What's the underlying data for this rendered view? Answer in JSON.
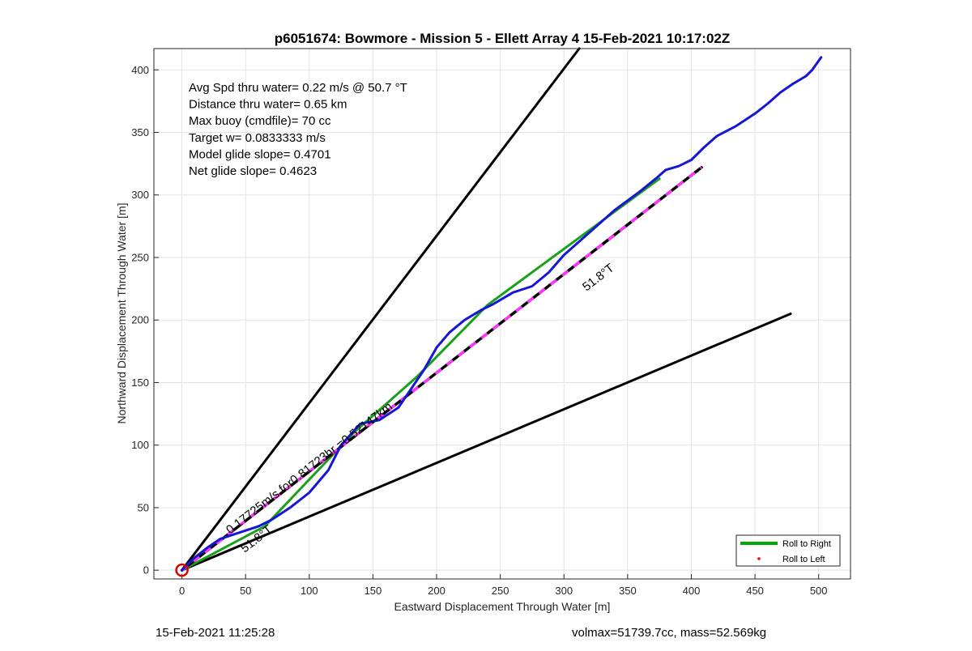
{
  "chart_data": {
    "type": "line",
    "title": "p6051674: Bowmore - Mission 5 - Ellett Array 4 15-Feb-2021 10:17:02Z",
    "xlabel": "Eastward Displacement Through Water [m]",
    "ylabel": "Northward Displacement Through Water [m]",
    "xlim": [
      -22,
      525
    ],
    "ylim": [
      -7,
      417
    ],
    "xticks": [
      0,
      50,
      100,
      150,
      200,
      250,
      300,
      350,
      400,
      450,
      500
    ],
    "yticks": [
      0,
      50,
      100,
      150,
      200,
      250,
      300,
      350,
      400
    ],
    "grid": true,
    "legend_position": "bottom-right",
    "annotations": [
      "Avg Spd thru water=  0.22 m/s @  50.7 °T",
      "Distance thru water=  0.65 km",
      "Max buoy (cmdfile)= 70 cc",
      "Target w= 0.0833333 m/s",
      "Model glide slope= 0.4701",
      "Net glide slope= 0.4623"
    ],
    "line_labels": {
      "along_track": "0.17725m/s for0.81723hr =0.52147km",
      "heading_1": "51.8°T",
      "heading_2": "51.8°T"
    },
    "legend": [
      {
        "label": "Roll to Right",
        "color": "#00aa00",
        "style": "line"
      },
      {
        "label": "Roll to Left",
        "color": "#ff0000",
        "style": "dot"
      }
    ],
    "series": [
      {
        "name": "Roll to Right",
        "color": "#1aa01a",
        "x": [
          0,
          65,
          135,
          185,
          240,
          375
        ],
        "y": [
          0,
          35,
          110,
          155,
          212,
          313
        ]
      },
      {
        "name": "track",
        "color": "#1616d6",
        "x": [
          0,
          10,
          20,
          30,
          45,
          60,
          70,
          85,
          100,
          115,
          125,
          140,
          155,
          170,
          180,
          190,
          200,
          210,
          222,
          235,
          245,
          260,
          275,
          288,
          300,
          320,
          340,
          360,
          372,
          380,
          390,
          400,
          410,
          420,
          435,
          450,
          460,
          470,
          480,
          490,
          495,
          502
        ],
        "y": [
          0,
          10,
          18,
          25,
          30,
          35,
          40,
          50,
          62,
          80,
          100,
          117,
          120,
          130,
          145,
          160,
          178,
          190,
          200,
          208,
          213,
          222,
          227,
          238,
          252,
          270,
          288,
          303,
          313,
          320,
          323,
          328,
          338,
          347,
          355,
          365,
          373,
          382,
          389,
          395,
          400,
          410
        ]
      },
      {
        "name": "heading",
        "color": "#000000",
        "x": [
          0,
          408
        ],
        "y": [
          0,
          322
        ]
      },
      {
        "name": "heading-overlay",
        "color": "#ff33ff",
        "x": [
          0,
          408
        ],
        "y": [
          0,
          322
        ]
      },
      {
        "name": "upper bound",
        "color": "#000000",
        "x": [
          0,
          312
        ],
        "y": [
          0,
          417
        ]
      },
      {
        "name": "lower bound",
        "color": "#000000",
        "x": [
          0,
          478
        ],
        "y": [
          0,
          205
        ]
      }
    ],
    "start_marker": {
      "x": 0,
      "y": 0,
      "color": "#dd0000"
    }
  },
  "footer": {
    "left": "15-Feb-2021 11:25:28",
    "right": "volmax=51739.7cc, mass=52.569kg"
  }
}
